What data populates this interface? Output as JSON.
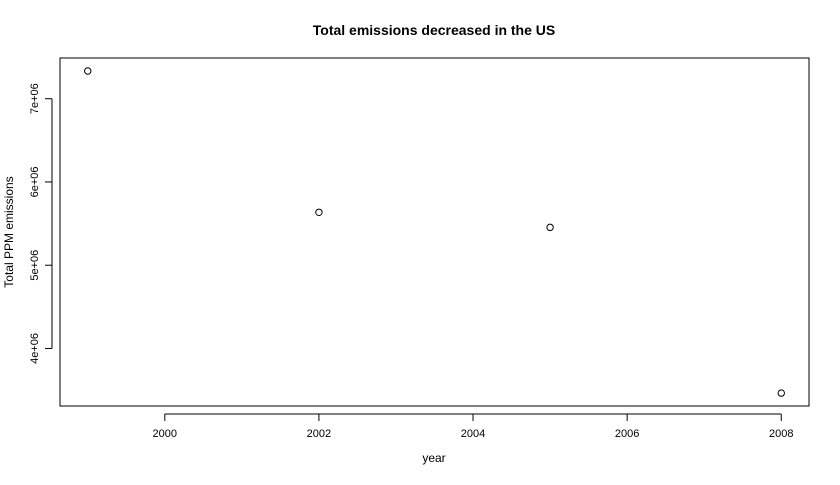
{
  "chart_data": {
    "type": "scatter",
    "title": "Total emissions decreased in the US",
    "xlabel": "year",
    "ylabel": "Total PPM emissions",
    "x": [
      1999,
      2002,
      2005,
      2008
    ],
    "y": [
      7332967,
      5635780,
      5454703,
      3464206
    ],
    "xlim": [
      1998.64,
      2008.36
    ],
    "ylim": [
      3309000,
      7489000
    ],
    "x_ticks": [
      2000,
      2002,
      2004,
      2006,
      2008
    ],
    "x_tick_labels": [
      "2000",
      "2002",
      "2004",
      "2006",
      "2008"
    ],
    "y_ticks": [
      4000000,
      5000000,
      6000000,
      7000000
    ],
    "y_tick_labels": [
      "4e+06",
      "5e+06",
      "6e+06",
      "7e+06"
    ],
    "marker": "open-circle",
    "grid": false,
    "legend": "none",
    "colors": {
      "point": "#000000",
      "axis": "#000000",
      "background": "#ffffff"
    }
  }
}
